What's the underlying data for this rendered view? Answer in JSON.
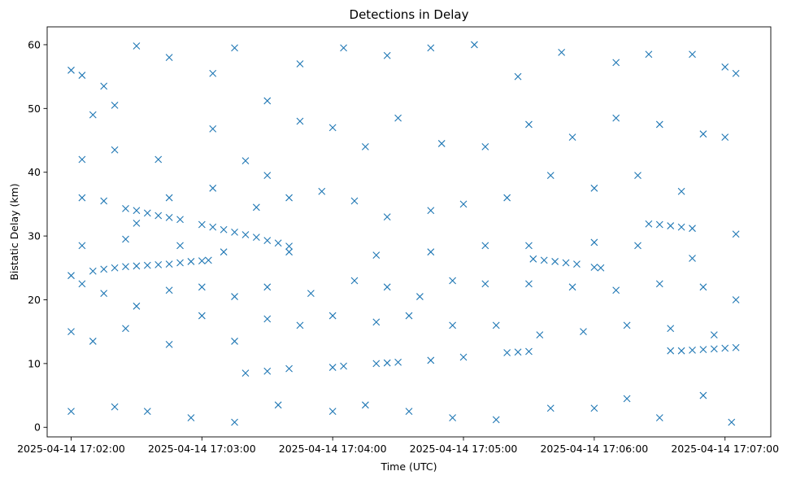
{
  "chart_data": {
    "type": "scatter",
    "title": "Detections in Delay",
    "xlabel": "Time (UTC)",
    "ylabel": "Bistatic Delay (km)",
    "x_is_time": true,
    "xlim": [
      "2025-04-14 17:01:49",
      "2025-04-14 17:07:21"
    ],
    "ylim": [
      -1.5,
      62.8
    ],
    "x_ticks": [
      "2025-04-14 17:02:00",
      "2025-04-14 17:03:00",
      "2025-04-14 17:04:00",
      "2025-04-14 17:05:00",
      "2025-04-14 17:06:00",
      "2025-04-14 17:07:00"
    ],
    "y_ticks": [
      0,
      10,
      20,
      30,
      40,
      50,
      60
    ],
    "grid": false,
    "marker": "x",
    "color": "#1f77b4",
    "series": [
      {
        "points": [
          [
            "2025-04-14 17:02:10",
            24.5
          ],
          [
            "2025-04-14 17:02:15",
            24.8
          ],
          [
            "2025-04-14 17:02:20",
            25.0
          ],
          [
            "2025-04-14 17:02:25",
            25.2
          ],
          [
            "2025-04-14 17:02:30",
            25.3
          ],
          [
            "2025-04-14 17:02:35",
            25.4
          ],
          [
            "2025-04-14 17:02:40",
            25.5
          ],
          [
            "2025-04-14 17:02:45",
            25.6
          ],
          [
            "2025-04-14 17:02:50",
            25.8
          ],
          [
            "2025-04-14 17:02:55",
            26.0
          ],
          [
            "2025-04-14 17:03:00",
            26.1
          ],
          [
            "2025-04-14 17:03:03",
            26.2
          ],
          [
            "2025-04-14 17:02:25",
            34.3
          ],
          [
            "2025-04-14 17:02:30",
            34.0
          ],
          [
            "2025-04-14 17:02:35",
            33.6
          ],
          [
            "2025-04-14 17:02:40",
            33.2
          ],
          [
            "2025-04-14 17:02:45",
            32.9
          ],
          [
            "2025-04-14 17:02:50",
            32.6
          ],
          [
            "2025-04-14 17:03:00",
            31.8
          ],
          [
            "2025-04-14 17:03:05",
            31.4
          ],
          [
            "2025-04-14 17:03:10",
            31.0
          ],
          [
            "2025-04-14 17:03:15",
            30.6
          ],
          [
            "2025-04-14 17:03:20",
            30.2
          ],
          [
            "2025-04-14 17:03:25",
            29.8
          ],
          [
            "2025-04-14 17:03:30",
            29.3
          ],
          [
            "2025-04-14 17:03:35",
            28.9
          ],
          [
            "2025-04-14 17:03:40",
            28.4
          ],
          [
            "2025-04-14 17:05:32",
            26.4
          ],
          [
            "2025-04-14 17:05:37",
            26.2
          ],
          [
            "2025-04-14 17:05:42",
            26.0
          ],
          [
            "2025-04-14 17:05:47",
            25.8
          ],
          [
            "2025-04-14 17:05:52",
            25.6
          ],
          [
            "2025-04-14 17:06:00",
            25.1
          ],
          [
            "2025-04-14 17:06:03",
            25.0
          ],
          [
            "2025-04-14 17:06:25",
            31.9
          ],
          [
            "2025-04-14 17:06:30",
            31.8
          ],
          [
            "2025-04-14 17:06:35",
            31.6
          ],
          [
            "2025-04-14 17:06:40",
            31.4
          ],
          [
            "2025-04-14 17:06:45",
            31.2
          ],
          [
            "2025-04-14 17:03:20",
            8.5
          ],
          [
            "2025-04-14 17:03:30",
            8.8
          ],
          [
            "2025-04-14 17:03:40",
            9.2
          ],
          [
            "2025-04-14 17:04:00",
            9.4
          ],
          [
            "2025-04-14 17:04:05",
            9.6
          ],
          [
            "2025-04-14 17:04:20",
            10.0
          ],
          [
            "2025-04-14 17:04:25",
            10.1
          ],
          [
            "2025-04-14 17:04:30",
            10.2
          ],
          [
            "2025-04-14 17:04:45",
            10.5
          ],
          [
            "2025-04-14 17:05:00",
            11.0
          ],
          [
            "2025-04-14 17:05:20",
            11.7
          ],
          [
            "2025-04-14 17:05:25",
            11.8
          ],
          [
            "2025-04-14 17:05:30",
            11.9
          ],
          [
            "2025-04-14 17:06:35",
            12.0
          ],
          [
            "2025-04-14 17:06:40",
            12.0
          ],
          [
            "2025-04-14 17:06:45",
            12.1
          ],
          [
            "2025-04-14 17:06:50",
            12.2
          ],
          [
            "2025-04-14 17:06:55",
            12.3
          ],
          [
            "2025-04-14 17:07:00",
            12.4
          ],
          [
            "2025-04-14 17:07:05",
            12.5
          ],
          [
            "2025-04-14 17:02:00",
            56.0
          ],
          [
            "2025-04-14 17:02:05",
            55.2
          ],
          [
            "2025-04-14 17:02:10",
            49.0
          ],
          [
            "2025-04-14 17:02:15",
            53.5
          ],
          [
            "2025-04-14 17:02:20",
            50.5
          ],
          [
            "2025-04-14 17:02:30",
            59.8
          ],
          [
            "2025-04-14 17:02:45",
            58.0
          ],
          [
            "2025-04-14 17:03:05",
            55.5
          ],
          [
            "2025-04-14 17:03:15",
            59.5
          ],
          [
            "2025-04-14 17:03:30",
            51.2
          ],
          [
            "2025-04-14 17:03:45",
            57.0
          ],
          [
            "2025-04-14 17:04:05",
            59.5
          ],
          [
            "2025-04-14 17:04:25",
            58.3
          ],
          [
            "2025-04-14 17:04:45",
            59.5
          ],
          [
            "2025-04-14 17:05:05",
            60.0
          ],
          [
            "2025-04-14 17:05:25",
            55.0
          ],
          [
            "2025-04-14 17:05:45",
            58.8
          ],
          [
            "2025-04-14 17:06:10",
            57.2
          ],
          [
            "2025-04-14 17:06:25",
            58.5
          ],
          [
            "2025-04-14 17:06:45",
            58.5
          ],
          [
            "2025-04-14 17:07:00",
            56.5
          ],
          [
            "2025-04-14 17:07:05",
            55.5
          ],
          [
            "2025-04-14 17:02:05",
            42.0
          ],
          [
            "2025-04-14 17:02:20",
            43.5
          ],
          [
            "2025-04-14 17:02:40",
            42.0
          ],
          [
            "2025-04-14 17:03:05",
            46.8
          ],
          [
            "2025-04-14 17:03:20",
            41.8
          ],
          [
            "2025-04-14 17:03:30",
            39.5
          ],
          [
            "2025-04-14 17:03:45",
            48.0
          ],
          [
            "2025-04-14 17:04:00",
            47.0
          ],
          [
            "2025-04-14 17:04:15",
            44.0
          ],
          [
            "2025-04-14 17:04:30",
            48.5
          ],
          [
            "2025-04-14 17:04:50",
            44.5
          ],
          [
            "2025-04-14 17:05:10",
            44.0
          ],
          [
            "2025-04-14 17:05:30",
            47.5
          ],
          [
            "2025-04-14 17:05:50",
            45.5
          ],
          [
            "2025-04-14 17:06:10",
            48.5
          ],
          [
            "2025-04-14 17:06:30",
            47.5
          ],
          [
            "2025-04-14 17:06:50",
            46.0
          ],
          [
            "2025-04-14 17:07:00",
            45.5
          ],
          [
            "2025-04-14 17:02:05",
            36.0
          ],
          [
            "2025-04-14 17:02:15",
            35.5
          ],
          [
            "2025-04-14 17:02:30",
            32.0
          ],
          [
            "2025-04-14 17:02:45",
            36.0
          ],
          [
            "2025-04-14 17:03:05",
            37.5
          ],
          [
            "2025-04-14 17:03:25",
            34.5
          ],
          [
            "2025-04-14 17:03:40",
            36.0
          ],
          [
            "2025-04-14 17:03:55",
            37.0
          ],
          [
            "2025-04-14 17:04:10",
            35.5
          ],
          [
            "2025-04-14 17:04:25",
            33.0
          ],
          [
            "2025-04-14 17:04:45",
            34.0
          ],
          [
            "2025-04-14 17:05:00",
            35.0
          ],
          [
            "2025-04-14 17:05:20",
            36.0
          ],
          [
            "2025-04-14 17:05:40",
            39.5
          ],
          [
            "2025-04-14 17:06:00",
            37.5
          ],
          [
            "2025-04-14 17:06:20",
            39.5
          ],
          [
            "2025-04-14 17:06:40",
            37.0
          ],
          [
            "2025-04-14 17:02:00",
            23.8
          ],
          [
            "2025-04-14 17:02:05",
            22.5
          ],
          [
            "2025-04-14 17:02:15",
            21.0
          ],
          [
            "2025-04-14 17:02:30",
            19.0
          ],
          [
            "2025-04-14 17:02:45",
            21.5
          ],
          [
            "2025-04-14 17:03:00",
            22.0
          ],
          [
            "2025-04-14 17:03:15",
            20.5
          ],
          [
            "2025-04-14 17:03:30",
            22.0
          ],
          [
            "2025-04-14 17:03:50",
            21.0
          ],
          [
            "2025-04-14 17:04:10",
            23.0
          ],
          [
            "2025-04-14 17:04:25",
            22.0
          ],
          [
            "2025-04-14 17:04:40",
            20.5
          ],
          [
            "2025-04-14 17:04:55",
            23.0
          ],
          [
            "2025-04-14 17:05:10",
            22.5
          ],
          [
            "2025-04-14 17:05:30",
            22.5
          ],
          [
            "2025-04-14 17:05:50",
            22.0
          ],
          [
            "2025-04-14 17:06:10",
            21.5
          ],
          [
            "2025-04-14 17:06:30",
            22.5
          ],
          [
            "2025-04-14 17:06:50",
            22.0
          ],
          [
            "2025-04-14 17:07:05",
            20.0
          ],
          [
            "2025-04-14 17:02:00",
            15.0
          ],
          [
            "2025-04-14 17:02:10",
            13.5
          ],
          [
            "2025-04-14 17:02:25",
            15.5
          ],
          [
            "2025-04-14 17:02:45",
            13.0
          ],
          [
            "2025-04-14 17:03:00",
            17.5
          ],
          [
            "2025-04-14 17:03:15",
            13.5
          ],
          [
            "2025-04-14 17:03:30",
            17.0
          ],
          [
            "2025-04-14 17:03:45",
            16.0
          ],
          [
            "2025-04-14 17:04:00",
            17.5
          ],
          [
            "2025-04-14 17:04:20",
            16.5
          ],
          [
            "2025-04-14 17:04:35",
            17.5
          ],
          [
            "2025-04-14 17:04:55",
            16.0
          ],
          [
            "2025-04-14 17:05:15",
            16.0
          ],
          [
            "2025-04-14 17:05:35",
            14.5
          ],
          [
            "2025-04-14 17:05:55",
            15.0
          ],
          [
            "2025-04-14 17:06:15",
            16.0
          ],
          [
            "2025-04-14 17:06:35",
            15.5
          ],
          [
            "2025-04-14 17:06:55",
            14.5
          ],
          [
            "2025-04-14 17:02:00",
            2.5
          ],
          [
            "2025-04-14 17:02:20",
            3.2
          ],
          [
            "2025-04-14 17:02:35",
            2.5
          ],
          [
            "2025-04-14 17:02:55",
            1.5
          ],
          [
            "2025-04-14 17:03:15",
            0.8
          ],
          [
            "2025-04-14 17:03:35",
            3.5
          ],
          [
            "2025-04-14 17:04:00",
            2.5
          ],
          [
            "2025-04-14 17:04:15",
            3.5
          ],
          [
            "2025-04-14 17:04:35",
            2.5
          ],
          [
            "2025-04-14 17:04:55",
            1.5
          ],
          [
            "2025-04-14 17:05:15",
            1.2
          ],
          [
            "2025-04-14 17:05:40",
            3.0
          ],
          [
            "2025-04-14 17:06:00",
            3.0
          ],
          [
            "2025-04-14 17:06:15",
            4.5
          ],
          [
            "2025-04-14 17:06:30",
            1.5
          ],
          [
            "2025-04-14 17:06:50",
            5.0
          ],
          [
            "2025-04-14 17:07:03",
            0.8
          ],
          [
            "2025-04-14 17:02:05",
            28.5
          ],
          [
            "2025-04-14 17:02:25",
            29.5
          ],
          [
            "2025-04-14 17:02:50",
            28.5
          ],
          [
            "2025-04-14 17:03:10",
            27.5
          ],
          [
            "2025-04-14 17:03:40",
            27.5
          ],
          [
            "2025-04-14 17:04:20",
            27.0
          ],
          [
            "2025-04-14 17:04:45",
            27.5
          ],
          [
            "2025-04-14 17:05:10",
            28.5
          ],
          [
            "2025-04-14 17:05:30",
            28.5
          ],
          [
            "2025-04-14 17:06:00",
            29.0
          ],
          [
            "2025-04-14 17:06:20",
            28.5
          ],
          [
            "2025-04-14 17:06:45",
            26.5
          ],
          [
            "2025-04-14 17:07:05",
            30.3
          ]
        ]
      }
    ]
  }
}
